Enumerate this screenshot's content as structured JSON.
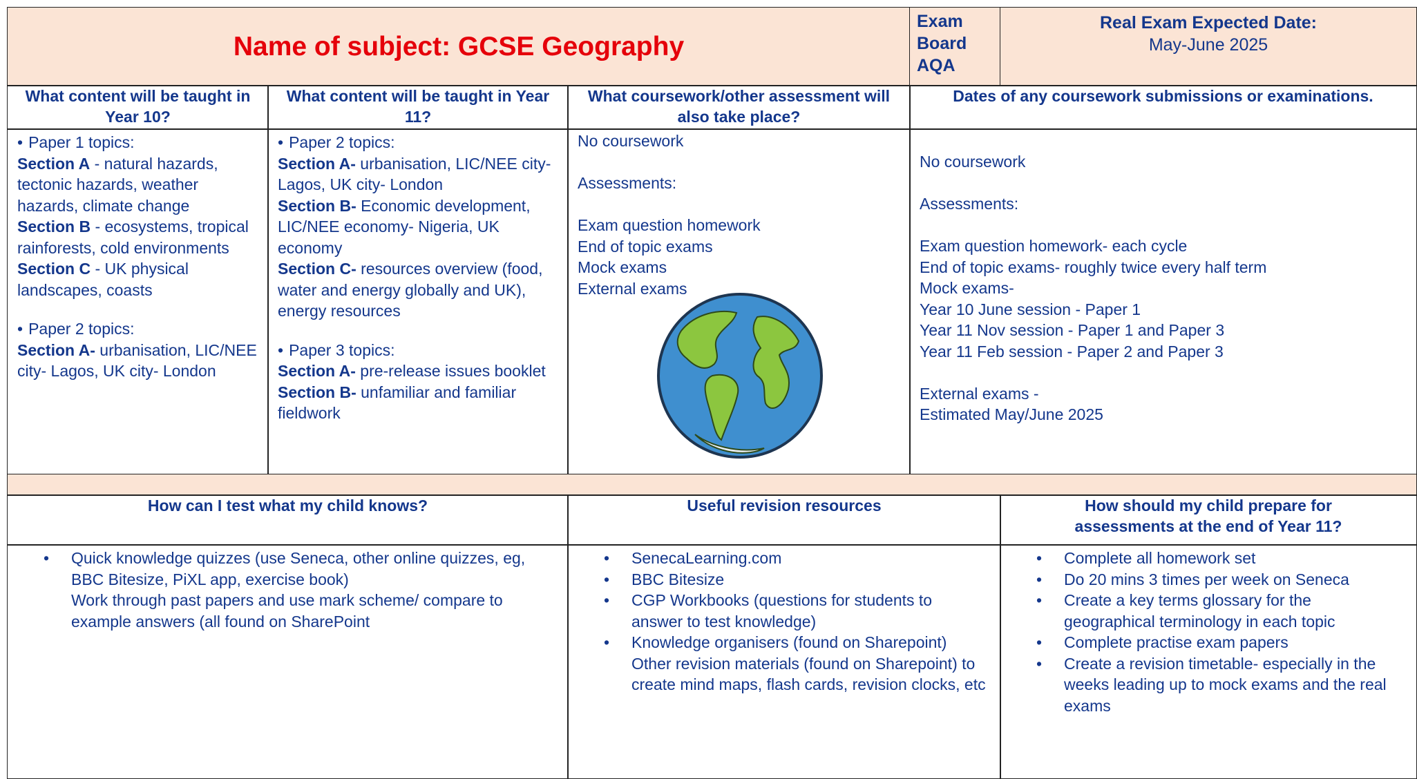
{
  "header": {
    "title": "Name of subject: GCSE Geography",
    "exam_board": "Exam Board AQA",
    "expected_date_label": "Real Exam Expected Date:",
    "expected_date": "May-June 2025"
  },
  "overview": {
    "headers": [
      "What content will be taught in Year 10?",
      "What content will be taught in Year 11?",
      "What coursework/other assessment will also take place?",
      "Dates of any coursework submissions or examinations."
    ],
    "year10": {
      "paper1": "Paper 1 topics:",
      "paper1_sections": [
        {
          "label": "Section A",
          "text": "- natural hazards, tectonic hazards, weather hazards, climate change"
        },
        {
          "label": "Section B",
          "text": "- ecosystems, tropical rainforests, cold environments"
        },
        {
          "label": "Section C",
          "text": "- UK physical landscapes, coasts"
        }
      ],
      "paper2": "Paper 2 topics:",
      "paper2_sections": [
        {
          "label": "Section A-",
          "text": "urbanisation, LIC/NEE city- Lagos, UK city- London"
        }
      ]
    },
    "year11": {
      "paper2": "Paper 2 topics:",
      "paper2_sections": [
        {
          "label": "Section A-",
          "text": "urbanisation, LIC/NEE city- Lagos, UK city- London"
        },
        {
          "label": "Section B-",
          "text": "Economic development, LIC/NEE economy- Nigeria, UK economy"
        },
        {
          "label": "Section C-",
          "text": "resources overview (food, water and energy globally and UK), energy resources"
        }
      ],
      "paper3": "Paper 3 topics:",
      "paper3_sections": [
        {
          "label": "Section A-",
          "text": "pre-release issues booklet"
        },
        {
          "label": "Section B-",
          "text": "unfamiliar and familiar fieldwork"
        }
      ]
    },
    "assessment": {
      "coursework": "No coursework",
      "assessments_label": "Assessments:",
      "assessments": [
        "Exam question homework",
        "End of topic exams",
        "Mock exams",
        "External exams"
      ]
    },
    "dates": {
      "coursework": "No coursework",
      "assessments_label": "Assessments:",
      "assessments": [
        "Exam question homework- each cycle",
        "End of topic exams- roughly twice every half term",
        "Mock exams-",
        "Year 10 June session - Paper 1",
        "Year 11 Nov session - Paper 1 and Paper 3",
        "Year 11 Feb session - Paper 2 and Paper 3"
      ],
      "external": [
        "External exams -",
        "Estimated May/June 2025"
      ]
    }
  },
  "support": {
    "headers": [
      "How can I test what my child knows?",
      "Useful revision resources",
      "How should my child prepare for assessments at the end of Year 11?"
    ],
    "test": [
      "Quick knowledge quizzes (use Seneca, other online quizzes, eg, BBC Bitesize, PiXL app, exercise book)",
      "Work through past papers and use mark scheme/ compare to example answers (all found on SharePoint"
    ],
    "resources": [
      "SenecaLearning.com",
      "BBC Bitesize",
      "CGP Workbooks (questions for students to answer to test knowledge)",
      "Knowledge organisers (found on Sharepoint)",
      "Other revision materials (found on Sharepoint) to create mind maps, flash cards, revision clocks, etc"
    ],
    "prepare": [
      "Complete all homework set",
      "Do 20 mins 3 times per week on Seneca",
      "Create a key terms glossary for the geographical terminology in each topic",
      "Complete practise exam papers",
      "Create a revision timetable- especially in the weeks leading up to mock exams and the real exams"
    ]
  }
}
